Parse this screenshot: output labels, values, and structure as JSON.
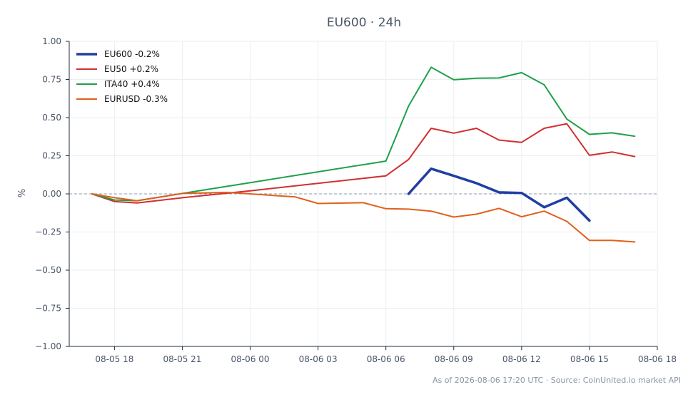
{
  "chart_data": {
    "type": "line",
    "title": "EU600 · 24h",
    "ylabel": "%",
    "xlabel": "",
    "ylim": [
      -1.0,
      1.0
    ],
    "y_ticks": [
      1.0,
      0.75,
      0.5,
      0.25,
      0.0,
      -0.25,
      -0.5,
      -0.75,
      -1.0
    ],
    "y_tick_labels": [
      "1.00",
      "0.75",
      "0.50",
      "0.25",
      "0.00",
      "−0.25",
      "−0.50",
      "−0.75",
      "−1.00"
    ],
    "x_tick_labels": [
      "08-05 18",
      "08-05 21",
      "08-06 00",
      "08-06 03",
      "08-06 06",
      "08-06 09",
      "08-06 12",
      "08-06 15",
      "08-06 18"
    ],
    "x_ticks": [
      "2026-08-05 18:00",
      "2026-08-05 21:00",
      "2026-08-06 00:00",
      "2026-08-06 03:00",
      "2026-08-06 06:00",
      "2026-08-06 09:00",
      "2026-08-06 12:00",
      "2026-08-06 15:00",
      "2026-08-06 18:00"
    ],
    "xlim": [
      "2026-08-05 16:00",
      "2026-08-06 18:00"
    ],
    "zero_line": true,
    "grid": true,
    "legend_position": "top-left",
    "series": [
      {
        "name": "EU600 -0.2%",
        "color": "#1f3fa0",
        "points": [
          [
            "2026-08-06 07:00",
            0.0
          ],
          [
            "2026-08-06 08:00",
            0.165
          ],
          [
            "2026-08-06 09:00",
            0.118
          ],
          [
            "2026-08-06 10:00",
            0.07
          ],
          [
            "2026-08-06 11:00",
            0.01
          ],
          [
            "2026-08-06 12:00",
            0.006
          ],
          [
            "2026-08-06 13:00",
            -0.088
          ],
          [
            "2026-08-06 14:00",
            -0.025
          ],
          [
            "2026-08-06 15:00",
            -0.175
          ]
        ]
      },
      {
        "name": "EU50 +0.2%",
        "color": "#d12f2f",
        "points": [
          [
            "2026-08-05 17:00",
            0.0
          ],
          [
            "2026-08-05 18:00",
            -0.05
          ],
          [
            "2026-08-05 19:00",
            -0.06
          ],
          [
            "2026-08-05 21:00",
            -0.025
          ],
          [
            "2026-08-06 00:00",
            0.02
          ],
          [
            "2026-08-06 06:00",
            0.118
          ],
          [
            "2026-08-06 07:00",
            0.225
          ],
          [
            "2026-08-06 08:00",
            0.43
          ],
          [
            "2026-08-06 09:00",
            0.398
          ],
          [
            "2026-08-06 10:00",
            0.43
          ],
          [
            "2026-08-06 11:00",
            0.353
          ],
          [
            "2026-08-06 12:00",
            0.338
          ],
          [
            "2026-08-06 13:00",
            0.43
          ],
          [
            "2026-08-06 14:00",
            0.46
          ],
          [
            "2026-08-06 15:00",
            0.253
          ],
          [
            "2026-08-06 16:00",
            0.275
          ],
          [
            "2026-08-06 17:00",
            0.245
          ]
        ]
      },
      {
        "name": "ITA40 +0.4%",
        "color": "#1fa04a",
        "points": [
          [
            "2026-08-05 17:00",
            0.0
          ],
          [
            "2026-08-05 18:00",
            -0.04
          ],
          [
            "2026-08-05 19:00",
            -0.045
          ],
          [
            "2026-08-05 21:00",
            0.003
          ],
          [
            "2026-08-06 06:00",
            0.215
          ],
          [
            "2026-08-06 07:00",
            0.575
          ],
          [
            "2026-08-06 08:00",
            0.83
          ],
          [
            "2026-08-06 09:00",
            0.748
          ],
          [
            "2026-08-06 10:00",
            0.758
          ],
          [
            "2026-08-06 11:00",
            0.76
          ],
          [
            "2026-08-06 12:00",
            0.795
          ],
          [
            "2026-08-06 13:00",
            0.715
          ],
          [
            "2026-08-06 14:00",
            0.49
          ],
          [
            "2026-08-06 15:00",
            0.39
          ],
          [
            "2026-08-06 16:00",
            0.4
          ],
          [
            "2026-08-06 17:00",
            0.378
          ]
        ]
      },
      {
        "name": "EURUSD -0.3%",
        "color": "#e0601c",
        "points": [
          [
            "2026-08-05 17:00",
            0.0
          ],
          [
            "2026-08-05 18:00",
            -0.025
          ],
          [
            "2026-08-05 19:00",
            -0.045
          ],
          [
            "2026-08-05 21:00",
            0.003
          ],
          [
            "2026-08-05 23:00",
            0.01
          ],
          [
            "2026-08-06 00:00",
            0.0
          ],
          [
            "2026-08-06 02:00",
            -0.02
          ],
          [
            "2026-08-06 03:00",
            -0.063
          ],
          [
            "2026-08-06 05:00",
            -0.058
          ],
          [
            "2026-08-06 06:00",
            -0.097
          ],
          [
            "2026-08-06 07:00",
            -0.1
          ],
          [
            "2026-08-06 08:00",
            -0.113
          ],
          [
            "2026-08-06 09:00",
            -0.152
          ],
          [
            "2026-08-06 10:00",
            -0.133
          ],
          [
            "2026-08-06 11:00",
            -0.095
          ],
          [
            "2026-08-06 12:00",
            -0.15
          ],
          [
            "2026-08-06 13:00",
            -0.113
          ],
          [
            "2026-08-06 14:00",
            -0.18
          ],
          [
            "2026-08-06 15:00",
            -0.305
          ],
          [
            "2026-08-06 16:00",
            -0.305
          ],
          [
            "2026-08-06 17:00",
            -0.315
          ]
        ]
      }
    ],
    "footer": "As of 2026-08-06 17:20 UTC · Source: CoinUnited.io market API"
  }
}
